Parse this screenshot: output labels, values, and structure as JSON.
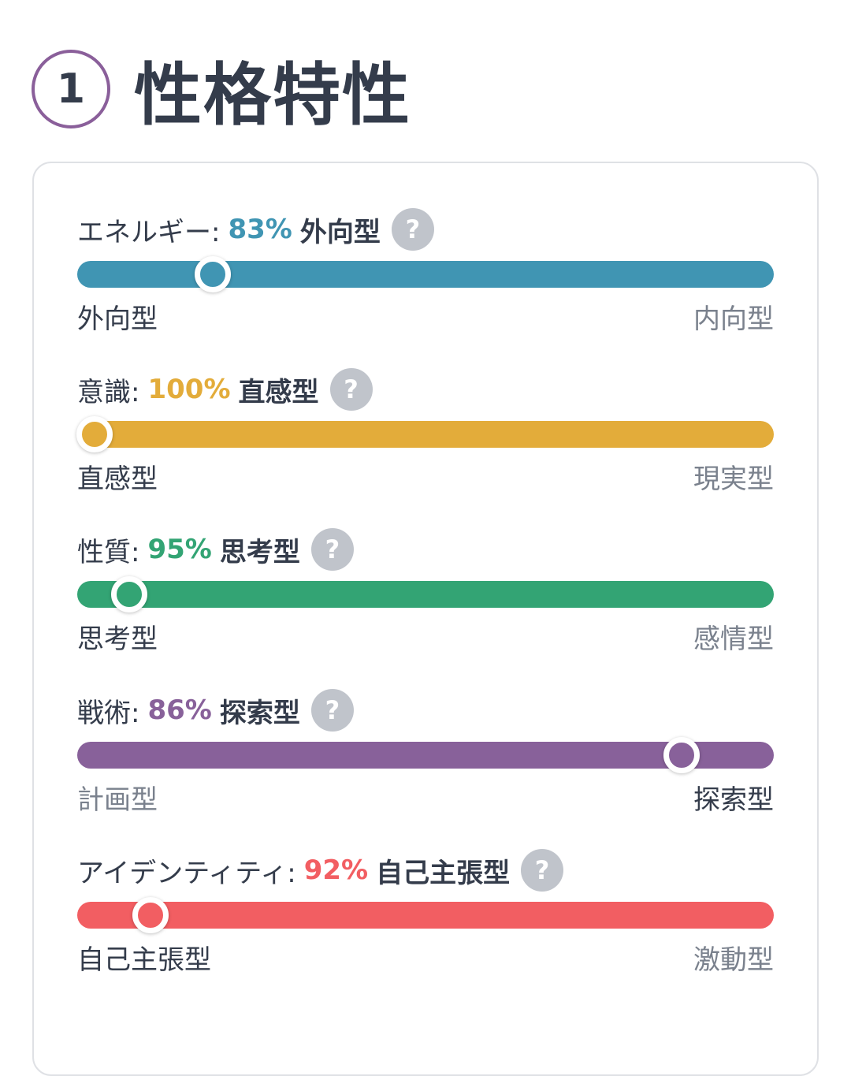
{
  "header": {
    "step_number": "1",
    "title": "性格特性"
  },
  "help_icon_glyph": "?",
  "traits": [
    {
      "name": "エネルギー:",
      "percent_text": "83%",
      "type": "外向型",
      "color": "#4095b3",
      "position_fraction": 0.195,
      "left_label": "外向型",
      "right_label": "内向型",
      "active_side": "left"
    },
    {
      "name": "意識:",
      "percent_text": "100%",
      "type": "直感型",
      "color": "#e3ac3a",
      "position_fraction": 0.025,
      "left_label": "直感型",
      "right_label": "現実型",
      "active_side": "left"
    },
    {
      "name": "性質:",
      "percent_text": "95%",
      "type": "思考型",
      "color": "#33a474",
      "position_fraction": 0.075,
      "left_label": "思考型",
      "right_label": "感情型",
      "active_side": "left"
    },
    {
      "name": "戦術:",
      "percent_text": "86%",
      "type": "探索型",
      "color": "#88619a",
      "position_fraction": 0.868,
      "left_label": "計画型",
      "right_label": "探索型",
      "active_side": "right"
    },
    {
      "name": "アイデンティティ:",
      "percent_text": "92%",
      "type": "自己主張型",
      "color": "#f25e62",
      "position_fraction": 0.105,
      "left_label": "自己主張型",
      "right_label": "激動型",
      "active_side": "left"
    }
  ]
}
